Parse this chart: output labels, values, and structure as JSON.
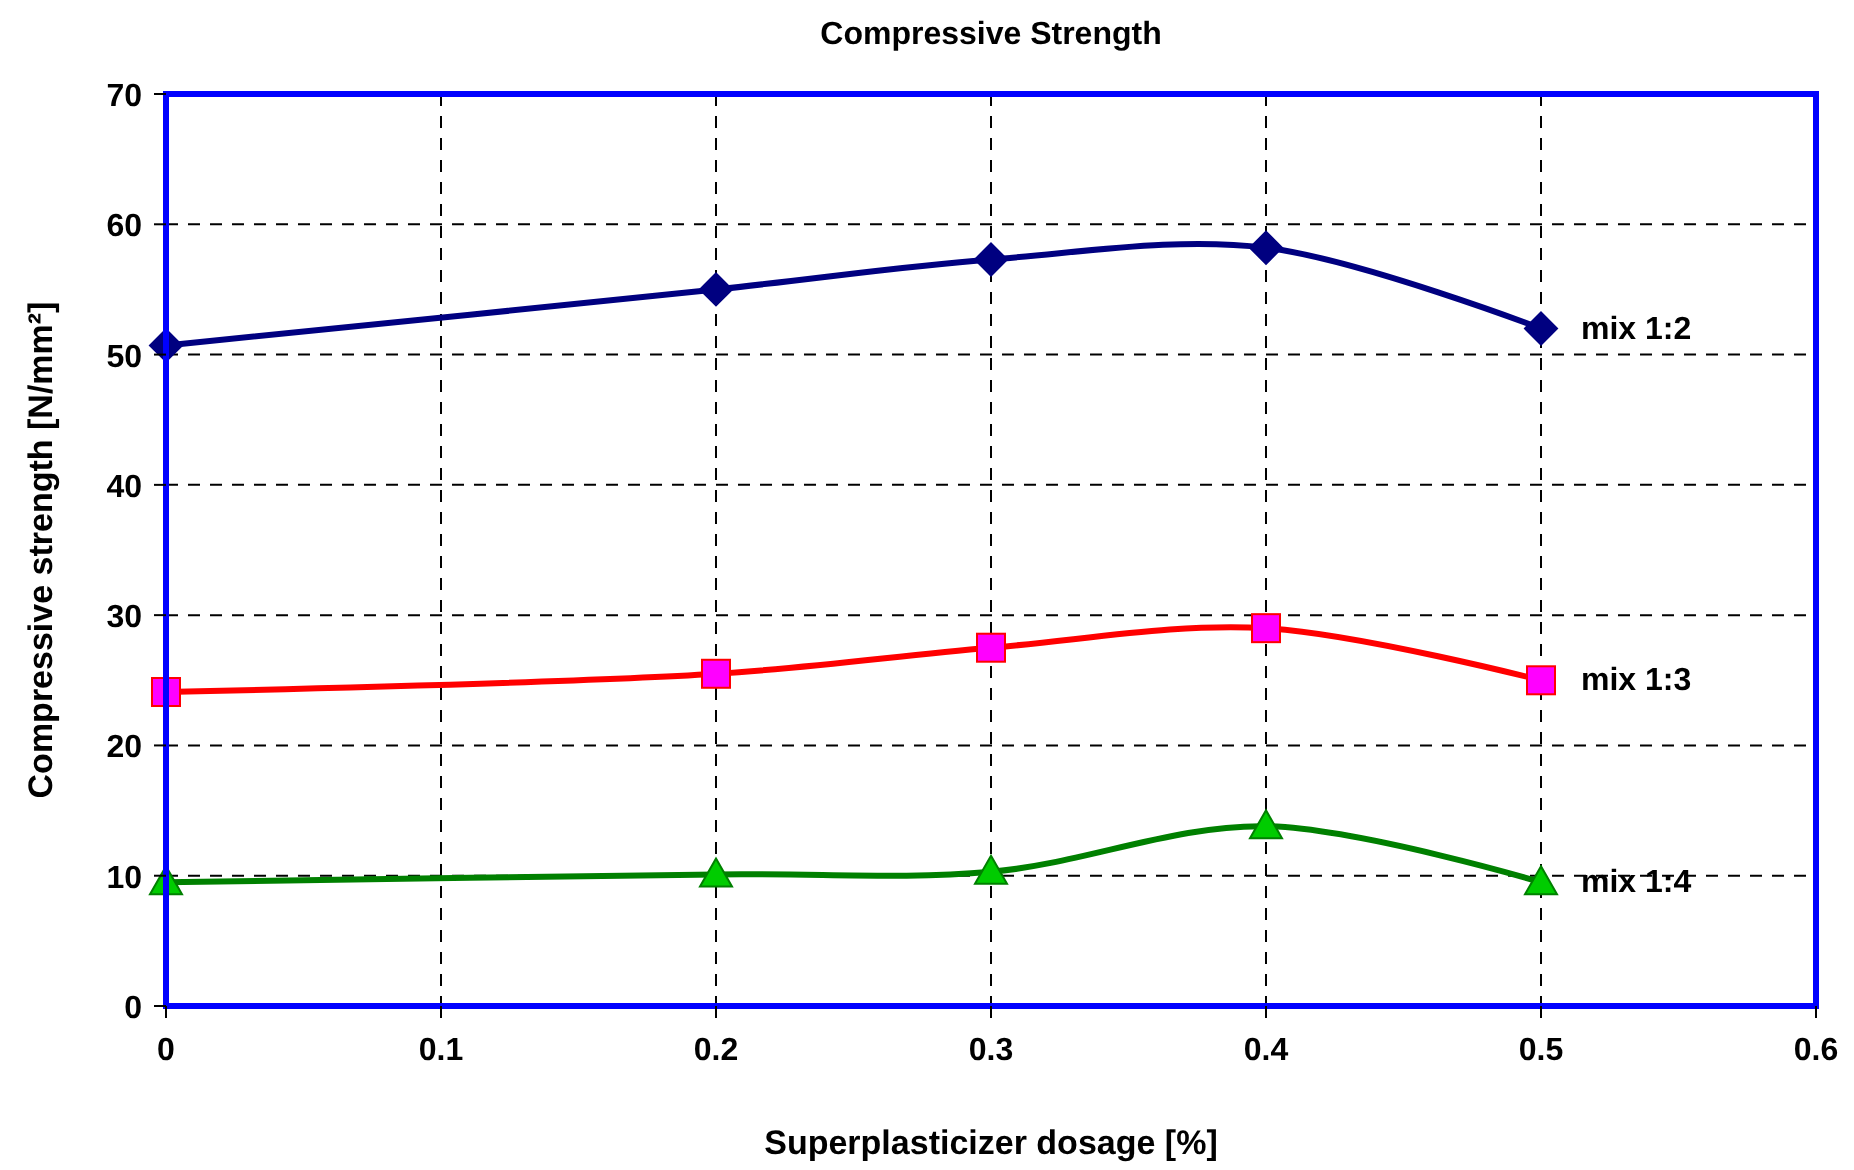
{
  "chart_data": {
    "type": "line",
    "title": "Compressive Strength",
    "xlabel": "Superplasticizer dosage [%]",
    "ylabel": "Compressive strength [N/mm²]",
    "x": [
      0,
      0.2,
      0.3,
      0.4,
      0.5
    ],
    "series": [
      {
        "name": "mix 1:2",
        "color": "#000080",
        "marker": "diamond",
        "colors": [
          "#000080",
          "#000080",
          "#000080",
          "#000080",
          "#000080"
        ],
        "values": [
          50.7,
          55.0,
          57.3,
          58.2,
          52.0
        ]
      },
      {
        "name": "mix 1:3",
        "color": "#ff0000",
        "marker": "square",
        "colors": [
          "#ff00ff",
          "#ff00ff",
          "#ff00ff",
          "#ff00ff",
          "#ff00ff"
        ],
        "values": [
          24.1,
          25.5,
          27.5,
          29.0,
          25.0
        ]
      },
      {
        "name": "mix 1:4",
        "color": "#008000",
        "marker": "triangle",
        "colors": [
          "#00cc00",
          "#00cc00",
          "#00cc00",
          "#00cc00",
          "#00cc00"
        ],
        "values": [
          9.5,
          10.1,
          10.3,
          13.8,
          9.5
        ]
      }
    ],
    "xlim": [
      0,
      0.6
    ],
    "xticks": [
      0,
      0.1,
      0.2,
      0.3,
      0.4,
      0.5,
      0.6
    ],
    "ylim": [
      0,
      70
    ],
    "yticks": [
      0,
      10,
      20,
      30,
      40,
      50,
      60,
      70
    ],
    "grid": true,
    "line_style": "solid"
  }
}
